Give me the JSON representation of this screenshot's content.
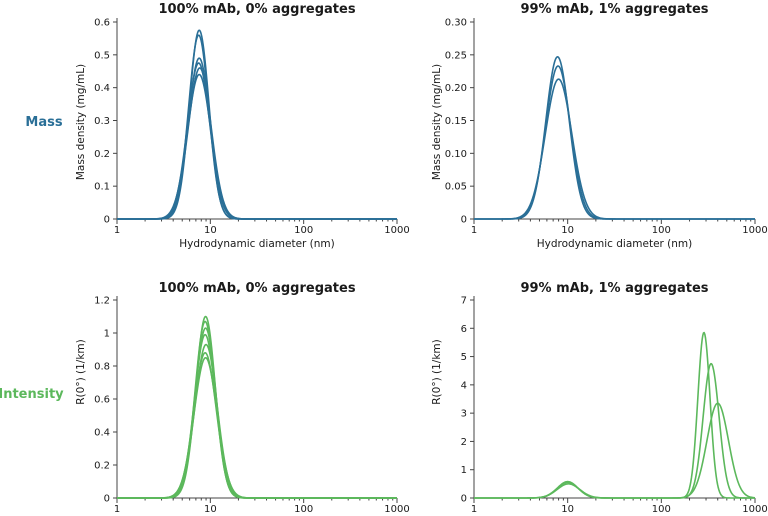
{
  "row_labels": {
    "mass": "Mass",
    "intensity": "Intensity"
  },
  "colors": {
    "mass": "#2a6f97",
    "intensity": "#5cb85c"
  },
  "chart_data": [
    {
      "id": "mass-0",
      "type": "line",
      "title": "100% mAb, 0% aggregates",
      "xlabel": "Hydrodynamic diameter (nm)",
      "ylabel": "Mass density (mg/mL)",
      "xscale": "log",
      "xlim": [
        1,
        1000
      ],
      "ylim": [
        0,
        0.6
      ],
      "xticks": [
        "1",
        "10",
        "100",
        "1000"
      ],
      "yticks": [
        "0",
        "0.1",
        "0.2",
        "0.3",
        "0.4",
        "0.5",
        "0.6"
      ],
      "color": "mass",
      "series": [
        {
          "peaks": [
            {
              "center": 7.6,
              "height": 0.575,
              "width": 0.105
            }
          ]
        },
        {
          "peaks": [
            {
              "center": 7.5,
              "height": 0.56,
              "width": 0.108
            }
          ]
        },
        {
          "peaks": [
            {
              "center": 7.6,
              "height": 0.49,
              "width": 0.118
            }
          ]
        },
        {
          "peaks": [
            {
              "center": 7.5,
              "height": 0.475,
              "width": 0.12
            }
          ]
        },
        {
          "peaks": [
            {
              "center": 7.7,
              "height": 0.46,
              "width": 0.123
            }
          ]
        },
        {
          "peaks": [
            {
              "center": 7.6,
              "height": 0.44,
              "width": 0.126
            }
          ]
        }
      ]
    },
    {
      "id": "mass-1",
      "type": "line",
      "title": "99% mAb, 1% aggregates",
      "xlabel": "Hydrodynamic diameter (nm)",
      "ylabel": "Mass density (mg/mL)",
      "xscale": "log",
      "xlim": [
        1,
        1000
      ],
      "ylim": [
        0,
        0.3
      ],
      "xticks": [
        "1",
        "10",
        "100",
        "1000"
      ],
      "yticks": [
        "0",
        "0.05",
        "0.10",
        "0.15",
        "0.20",
        "0.25",
        "0.30"
      ],
      "color": "mass",
      "series": [
        {
          "peaks": [
            {
              "center": 7.8,
              "height": 0.247,
              "width": 0.125
            }
          ]
        },
        {
          "peaks": [
            {
              "center": 7.9,
              "height": 0.233,
              "width": 0.132
            }
          ]
        },
        {
          "peaks": [
            {
              "center": 8.0,
              "height": 0.213,
              "width": 0.142
            }
          ]
        }
      ]
    },
    {
      "id": "int-0",
      "type": "line",
      "title": "100% mAb, 0% aggregates",
      "xlabel": "",
      "ylabel": "R(0°) (1/km)",
      "xscale": "log",
      "xlim": [
        1,
        1000
      ],
      "ylim": [
        0,
        1.2
      ],
      "xticks": [
        "1",
        "10",
        "100",
        "1000"
      ],
      "yticks": [
        "0",
        "0.2",
        "0.4",
        "0.6",
        "0.8",
        "1",
        "1.2"
      ],
      "color": "intensity",
      "series": [
        {
          "peaks": [
            {
              "center": 8.9,
              "height": 1.1,
              "width": 0.105
            }
          ]
        },
        {
          "peaks": [
            {
              "center": 8.8,
              "height": 1.07,
              "width": 0.108
            }
          ]
        },
        {
          "peaks": [
            {
              "center": 8.9,
              "height": 1.03,
              "width": 0.112
            }
          ]
        },
        {
          "peaks": [
            {
              "center": 8.8,
              "height": 0.99,
              "width": 0.114
            }
          ]
        },
        {
          "peaks": [
            {
              "center": 9.0,
              "height": 0.93,
              "width": 0.118
            }
          ]
        },
        {
          "peaks": [
            {
              "center": 8.8,
              "height": 0.88,
              "width": 0.12
            }
          ]
        },
        {
          "peaks": [
            {
              "center": 8.9,
              "height": 0.85,
              "width": 0.123
            }
          ]
        }
      ]
    },
    {
      "id": "int-1",
      "type": "line",
      "title": "99% mAb, 1% aggregates",
      "xlabel": "",
      "ylabel": "R(0°) (1/km)",
      "xscale": "log",
      "xlim": [
        1,
        1000
      ],
      "ylim": [
        0,
        7
      ],
      "xticks": [
        "1",
        "10",
        "100",
        "1000"
      ],
      "yticks": [
        "0",
        "1",
        "2",
        "3",
        "4",
        "5",
        "6",
        "7"
      ],
      "color": "intensity",
      "series": [
        {
          "peaks": [
            {
              "center": 10,
              "height": 0.58,
              "width": 0.11
            },
            {
              "center": 285,
              "height": 5.85,
              "width": 0.065
            }
          ]
        },
        {
          "peaks": [
            {
              "center": 10,
              "height": 0.55,
              "width": 0.115
            },
            {
              "center": 340,
              "height": 4.75,
              "width": 0.085
            }
          ]
        },
        {
          "peaks": [
            {
              "center": 10.2,
              "height": 0.5,
              "width": 0.12
            },
            {
              "center": 400,
              "height": 3.35,
              "width": 0.115
            }
          ]
        }
      ]
    }
  ]
}
